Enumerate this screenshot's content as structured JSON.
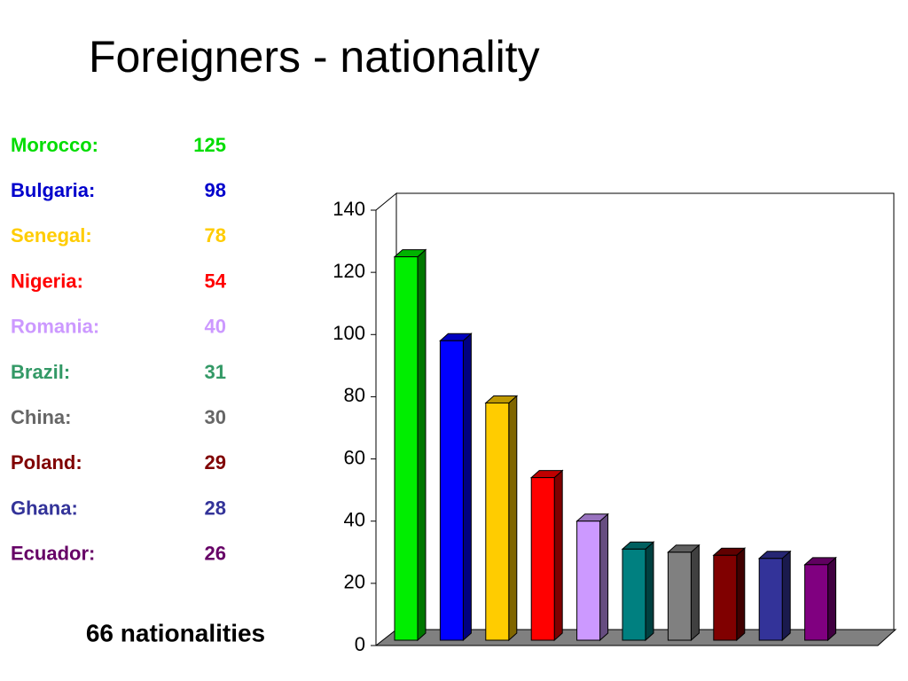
{
  "chart_data": {
    "type": "bar",
    "title": "Foreigners - nationality",
    "categories": [
      "Morocco:",
      "Bulgaria:",
      "Senegal:",
      "Nigeria:",
      "Romania:",
      "Brazil:",
      "China:",
      "Poland:",
      "Ghana:",
      "Ecuador:"
    ],
    "values": [
      125,
      98,
      78,
      54,
      40,
      31,
      30,
      29,
      28,
      26
    ],
    "colors": [
      "#00ee00",
      "#0000ff",
      "#ffcc00",
      "#ff0000",
      "#cc99ff",
      "#008080",
      "#808080",
      "#800000",
      "#333399",
      "#800080"
    ],
    "label_colors": [
      "#00dd00",
      "#0000cc",
      "#ffcc00",
      "#ff0000",
      "#cc99ff",
      "#339966",
      "#666666",
      "#800000",
      "#333399",
      "#660066"
    ],
    "ylim": [
      0,
      140
    ],
    "yticks": [
      0,
      20,
      40,
      60,
      80,
      100,
      120,
      140
    ],
    "grid": false,
    "annotation": "66 nationalities"
  }
}
